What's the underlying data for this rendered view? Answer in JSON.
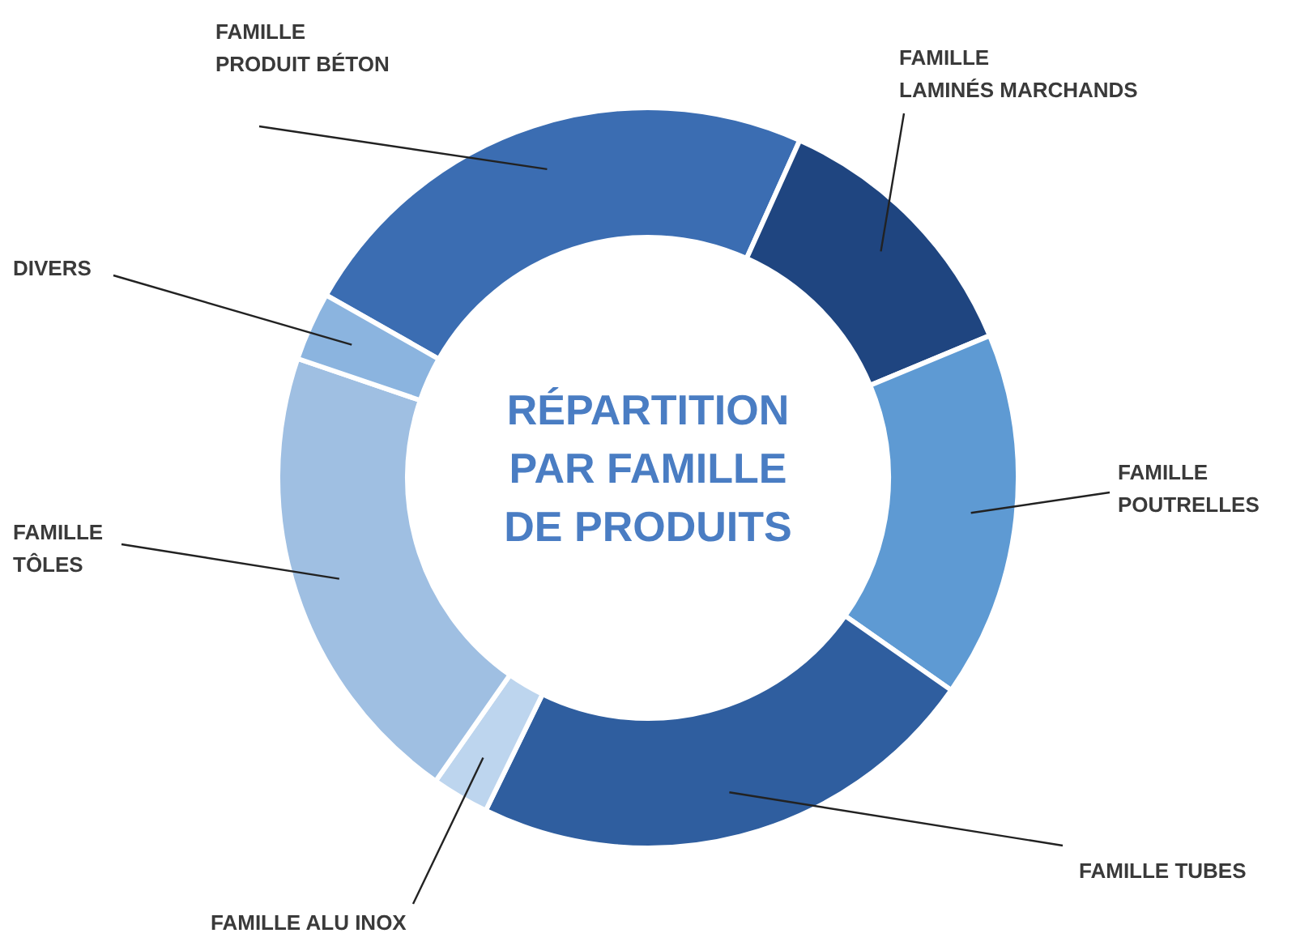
{
  "chart_data": {
    "type": "donut",
    "title": "RÉPARTITION PAR FAMILLE DE PRODUITS",
    "categories": [
      "FAMILLE PRODUIT BÉTON",
      "FAMILLE LAMINÉS MARCHANDS",
      "FAMILLE POUTRELLES",
      "FAMILLE TUBES",
      "FAMILLE ALU INOX",
      "FAMILLE TÔLES",
      "DIVERS"
    ],
    "values": [
      23.5,
      12,
      16,
      22.5,
      2.5,
      20.5,
      3
    ],
    "colors": [
      "#3b6db2",
      "#1f4580",
      "#5e9ad3",
      "#2f5e9f",
      "#bdd5ee",
      "#9fbfe2",
      "#8bb4df"
    ],
    "legend": false
  }
}
